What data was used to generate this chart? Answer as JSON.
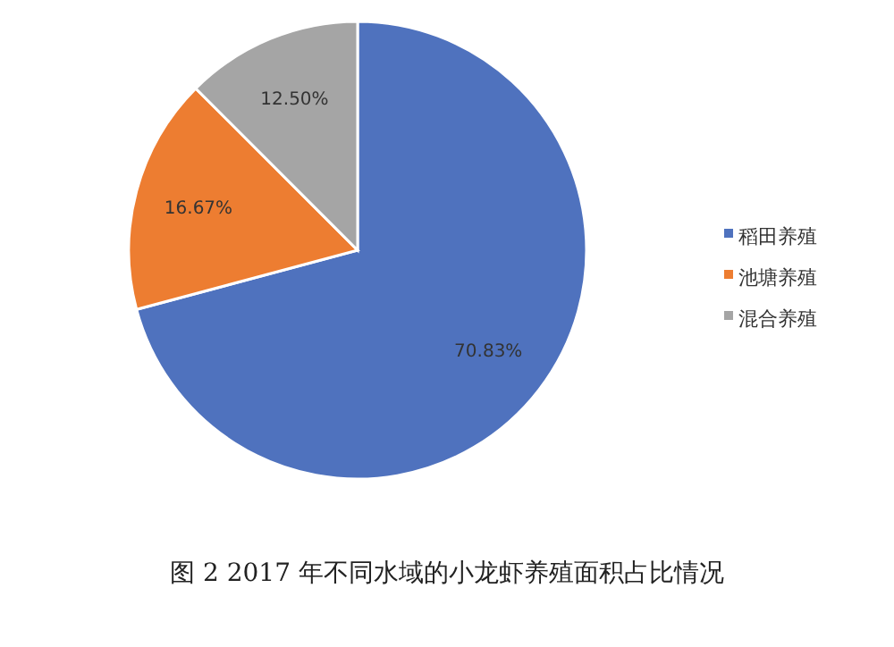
{
  "chart_data": {
    "type": "pie",
    "categories": [
      "稻田养殖",
      "池塘养殖",
      "混合养殖"
    ],
    "values": [
      70.83,
      16.67,
      12.5
    ],
    "value_labels": [
      "70.83%",
      "16.67%",
      "12.50%"
    ],
    "colors": [
      "#4f72be",
      "#ed7d31",
      "#a5a5a5"
    ],
    "legend": "right",
    "annotations": [
      "图 2 2017 年不同水域的小龙虾养殖面积占比情况"
    ]
  }
}
